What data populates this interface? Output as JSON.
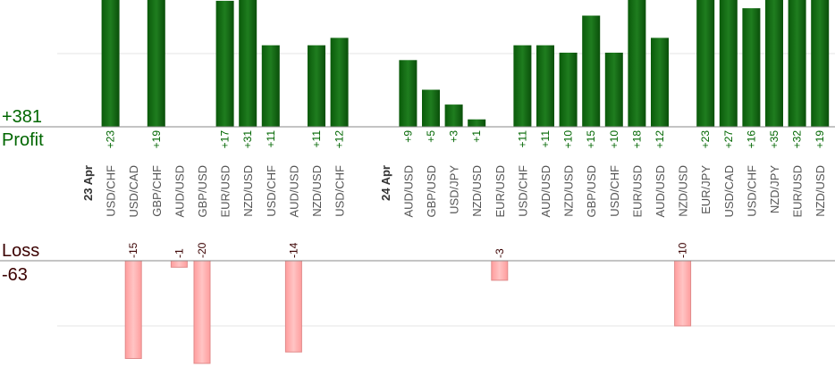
{
  "profit": {
    "label": "Profit",
    "total": 381,
    "total_label": "+381"
  },
  "loss": {
    "label": "Loss",
    "total": -63
  },
  "days": [
    {
      "date": "23 Apr",
      "trades": [
        {
          "pair": "USD/CHF",
          "value": 23,
          "value_label": "+23"
        },
        {
          "pair": "USD/CAD",
          "value": -15
        },
        {
          "pair": "GBP/CHF",
          "value": 19,
          "value_label": "+19"
        },
        {
          "pair": "AUD/USD",
          "value": -1
        },
        {
          "pair": "GBP/USD",
          "value": -20
        },
        {
          "pair": "EUR/USD",
          "value": 17,
          "value_label": "+17"
        },
        {
          "pair": "NZD/USD",
          "value": 31,
          "value_label": "+31"
        },
        {
          "pair": "USD/CHF",
          "value": 11,
          "value_label": "+11"
        },
        {
          "pair": "AUD/USD",
          "value": -14
        },
        {
          "pair": "NZD/USD",
          "value": 11,
          "value_label": "+11"
        },
        {
          "pair": "USD/CHF",
          "value": 12,
          "value_label": "+12"
        }
      ]
    },
    {
      "date": "24 Apr",
      "trades": [
        {
          "pair": "AUD/USD",
          "value": 9,
          "value_label": "+9"
        },
        {
          "pair": "GBP/USD",
          "value": 5,
          "value_label": "+5"
        },
        {
          "pair": "USD/JPY",
          "value": 3,
          "value_label": "+3"
        },
        {
          "pair": "NZD/USD",
          "value": 1,
          "value_label": "+1"
        },
        {
          "pair": "EUR/USD",
          "value": -3
        },
        {
          "pair": "USD/CHF",
          "value": 11,
          "value_label": "+11"
        },
        {
          "pair": "AUD/USD",
          "value": 11,
          "value_label": "+11"
        },
        {
          "pair": "NZD/USD",
          "value": 10,
          "value_label": "+10"
        },
        {
          "pair": "GBP/USD",
          "value": 15,
          "value_label": "+15"
        },
        {
          "pair": "USD/CHF",
          "value": 10,
          "value_label": "+10"
        },
        {
          "pair": "EUR/USD",
          "value": 18,
          "value_label": "+18"
        },
        {
          "pair": "AUD/USD",
          "value": 12,
          "value_label": "+12"
        },
        {
          "pair": "NZD/USD",
          "value": -10
        },
        {
          "pair": "EUR/JPY",
          "value": 23,
          "value_label": "+23"
        },
        {
          "pair": "USD/CAD",
          "value": 27,
          "value_label": "+27"
        },
        {
          "pair": "USD/CHF",
          "value": 16,
          "value_label": "+16"
        },
        {
          "pair": "NZD/JPY",
          "value": 35,
          "value_label": "+35"
        },
        {
          "pair": "EUR/USD",
          "value": 32,
          "value_label": "+32"
        },
        {
          "pair": "NZD/USD",
          "value": 19,
          "value_label": "+19"
        }
      ]
    }
  ]
}
